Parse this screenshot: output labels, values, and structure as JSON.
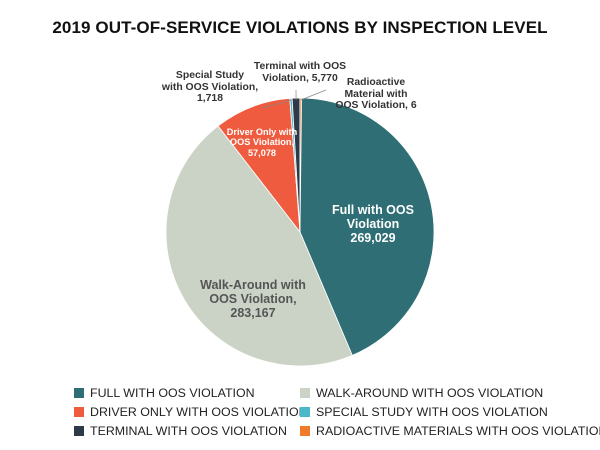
{
  "chart_data": {
    "type": "pie",
    "title": "2019 OUT-OF-SERVICE VIOLATIONS BY INSPECTION LEVEL",
    "slices": [
      {
        "name": "Full with OOS Violation",
        "value": 269029,
        "label_lines": [
          "Full with OOS",
          "Violation",
          "269,029"
        ],
        "color": "#2e6e74",
        "legend": "FULL WITH OOS VIOLATION"
      },
      {
        "name": "Walk-Around with OOS Violation",
        "value": 283167,
        "label_lines": [
          "Walk-Around with",
          "OOS Violation,",
          "283,167"
        ],
        "color": "#cbd3c6",
        "legend": "WALK-AROUND WITH OOS VIOLATION"
      },
      {
        "name": "Driver Only with OOS Violation",
        "value": 57078,
        "label_lines": [
          "Driver Only with",
          "OOS Violation,",
          "57,078"
        ],
        "color": "#ef5b3f",
        "legend": "DRIVER ONLY WITH OOS VIOLATION"
      },
      {
        "name": "Special Study with OOS Violation",
        "value": 1718,
        "label_lines": [
          "Special Study",
          "with OOS Violation,",
          "1,718"
        ],
        "color": "#4ab8c8",
        "legend": "SPECIAL STUDY WITH OOS VIOLATION"
      },
      {
        "name": "Terminal with OOS Violation",
        "value": 5770,
        "label_lines": [
          "Terminal with OOS",
          "Violation, 5,770"
        ],
        "color": "#2f3a48",
        "legend": "TERMINAL WITH OOS VIOLATION"
      },
      {
        "name": "Radioactive Material with OOS Violation",
        "value": 6,
        "label_lines": [
          "Radioactive",
          "Material with",
          "OOS Violation, 6"
        ],
        "color": "#f07b2a",
        "legend": "RADIOACTIVE MATERIALS WITH OOS VIOLATION"
      }
    ],
    "legend_position": "bottom"
  }
}
